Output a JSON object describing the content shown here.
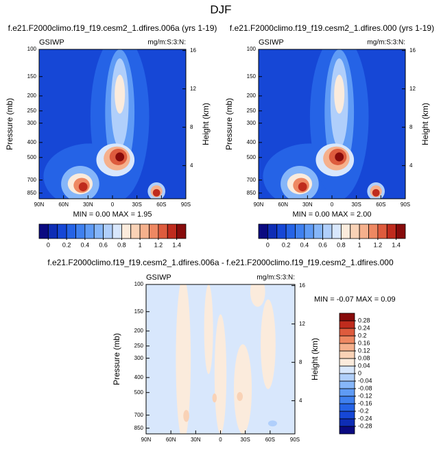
{
  "title": "DJF",
  "chart_data": [
    {
      "type": "contour",
      "title": "f.e21.F2000climo.f19_f19.cesm2_1.dfires.006a (yrs 1-19)",
      "subtitle_left": "GSIWP",
      "subtitle_right": "mg/m:S:3:N:",
      "ylabel": "Pressure (mb)",
      "y2label": "Height (km)",
      "stats": "MIN =  0.00  MAX =  1.95",
      "xlim": [
        90,
        -90
      ],
      "xticks": [
        {
          "value": 90,
          "label": "90N"
        },
        {
          "value": 60,
          "label": "60N"
        },
        {
          "value": 30,
          "label": "30N"
        },
        0,
        {
          "value": -30,
          "label": "30S"
        },
        {
          "value": -60,
          "label": "60S"
        },
        {
          "value": -90,
          "label": "90S"
        }
      ],
      "ylim": [
        100,
        925
      ],
      "ylog": true,
      "yreverse": true,
      "yticks": [
        100,
        150,
        200,
        250,
        300,
        400,
        500,
        700,
        850
      ],
      "y2ticks": [
        4,
        8,
        12,
        16
      ],
      "colorbar": {
        "lim": [
          -0.1,
          1.5
        ],
        "orientation": "horizontal",
        "ticks": [
          0,
          0.2,
          0.4,
          0.6,
          0.8,
          1,
          1.2,
          1.4
        ],
        "colors": [
          "#0a0a80",
          "#0e2db5",
          "#1647d6",
          "#2563e6",
          "#3f80ef",
          "#5f9bf5",
          "#86b6f9",
          "#b0cffb",
          "#d8e7fc",
          "#fbebdc",
          "#f9d2b6",
          "#f5b08c",
          "#ee8862",
          "#de5b3d",
          "#bf2b1d",
          "#870b0b"
        ]
      }
    },
    {
      "type": "contour",
      "title": "f.e21.F2000climo.f19_f19.cesm2_1.dfires.000 (yrs 1-19)",
      "subtitle_left": "GSIWP",
      "subtitle_right": "mg/m:S:3:N:",
      "ylabel": "Pressure (mb)",
      "y2label": "Height (km)",
      "stats": "MIN =  0.00  MAX =  2.00",
      "xlim": [
        90,
        -90
      ],
      "xticks": [
        {
          "value": 90,
          "label": "90N"
        },
        {
          "value": 60,
          "label": "60N"
        },
        {
          "value": 30,
          "label": "30N"
        },
        0,
        {
          "value": -30,
          "label": "30S"
        },
        {
          "value": -60,
          "label": "60S"
        },
        {
          "value": -90,
          "label": "90S"
        }
      ],
      "ylim": [
        100,
        925
      ],
      "ylog": true,
      "yreverse": true,
      "yticks": [
        100,
        150,
        200,
        250,
        300,
        400,
        500,
        700,
        850
      ],
      "y2ticks": [
        4,
        8,
        12,
        16
      ],
      "colorbar": {
        "lim": [
          -0.1,
          1.5
        ],
        "orientation": "horizontal",
        "ticks": [
          0,
          0.2,
          0.4,
          0.6,
          0.8,
          1,
          1.2,
          1.4
        ],
        "colors": [
          "#0a0a80",
          "#0e2db5",
          "#1647d6",
          "#2563e6",
          "#3f80ef",
          "#5f9bf5",
          "#86b6f9",
          "#b0cffb",
          "#d8e7fc",
          "#fbebdc",
          "#f9d2b6",
          "#f5b08c",
          "#ee8862",
          "#de5b3d",
          "#bf2b1d",
          "#870b0b"
        ]
      }
    },
    {
      "type": "contour",
      "title": "f.e21.F2000climo.f19_f19.cesm2_1.dfires.006a - f.e21.F2000climo.f19_f19.cesm2_1.dfires.000",
      "subtitle_left": "GSIWP",
      "subtitle_right": "mg/m:S:3:N:",
      "ylabel": "Pressure (mb)",
      "y2label": "Height (km)",
      "stats": "MIN = -0.07  MAX =  0.09",
      "xlim": [
        90,
        -90
      ],
      "xticks": [
        {
          "value": 90,
          "label": "90N"
        },
        {
          "value": 60,
          "label": "60N"
        },
        {
          "value": 30,
          "label": "30N"
        },
        0,
        {
          "value": -30,
          "label": "30S"
        },
        {
          "value": -60,
          "label": "60S"
        },
        {
          "value": -90,
          "label": "90S"
        }
      ],
      "ylim": [
        100,
        925
      ],
      "ylog": true,
      "yreverse": true,
      "yticks": [
        100,
        150,
        200,
        250,
        300,
        400,
        500,
        700,
        850
      ],
      "y2ticks": [
        4,
        8,
        12,
        16
      ],
      "colorbar": {
        "lim": [
          -0.32,
          0.32
        ],
        "orientation": "vertical",
        "ticks": [
          0.28,
          0.24,
          0.2,
          0.16,
          0.12,
          0.08,
          0.04,
          0,
          -0.04,
          -0.08,
          -0.12,
          -0.16,
          -0.2,
          -0.24,
          -0.28
        ],
        "colors": [
          "#0a0a80",
          "#0e2db5",
          "#1647d6",
          "#2563e6",
          "#3f80ef",
          "#5f9bf5",
          "#86b6f9",
          "#b0cffb",
          "#d8e7fc",
          "#fbebdc",
          "#f9d2b6",
          "#f5b08c",
          "#ee8862",
          "#de5b3d",
          "#bf2b1d",
          "#870b0b"
        ]
      }
    }
  ]
}
